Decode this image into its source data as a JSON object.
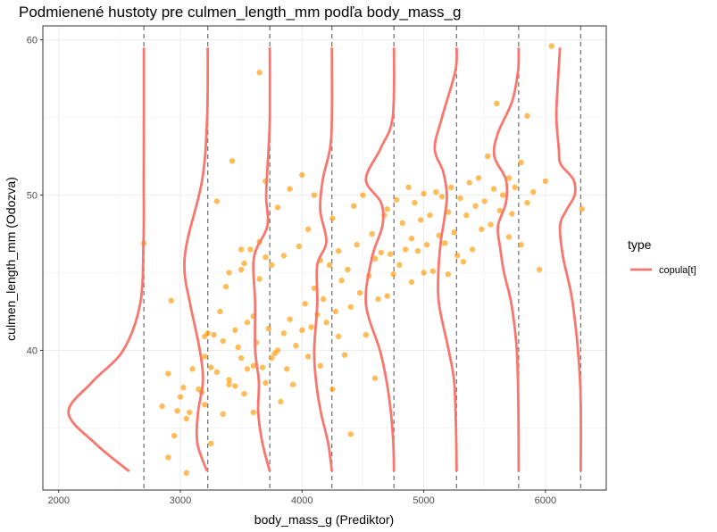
{
  "chart_data": {
    "type": "scatter",
    "title": "Podmienené hustoty pre culmen_length_mm podľa body_mass_g",
    "xlabel": "body_mass_g (Prediktor)",
    "ylabel": "culmen_length_mm (Odozva)",
    "xlim": [
      1870,
      6500
    ],
    "ylim": [
      31.0,
      60.9
    ],
    "xticks": [
      2000,
      3000,
      4000,
      5000,
      6000
    ],
    "yticks": [
      40,
      50,
      60
    ],
    "grid": true,
    "legend": {
      "title": "type",
      "position": "right",
      "entries": [
        {
          "label": "copula[t]",
          "color": "#F8766D"
        }
      ]
    },
    "point_color": "#FF9800",
    "density_color": "#F8766D",
    "slice_line_color": "#777777",
    "slice_positions": [
      2700,
      3225,
      3735,
      4245,
      4755,
      5270,
      5780,
      6290
    ],
    "density_curves": [
      {
        "x0": 2700,
        "y": [
          32.2,
          34.0,
          36.0,
          38.0,
          40.0,
          43.0,
          47.0,
          51.0,
          55.0,
          59.5
        ],
        "offset": [
          120,
          400,
          620,
          420,
          170,
          30,
          3,
          1,
          0,
          0
        ]
      },
      {
        "x0": 3225,
        "y": [
          32.2,
          34.0,
          36.0,
          38.0,
          40.0,
          43.0,
          45.0,
          47.0,
          51.0,
          55.0,
          59.5
        ],
        "offset": [
          5,
          85,
          80,
          40,
          65,
          145,
          190,
          170,
          45,
          5,
          0
        ]
      },
      {
        "x0": 3735,
        "y": [
          32.2,
          34.0,
          36.0,
          38.0,
          40.0,
          43.0,
          46.0,
          48.0,
          50.0,
          53.0,
          55.0,
          59.5
        ],
        "offset": [
          0,
          60,
          95,
          90,
          120,
          120,
          130,
          20,
          30,
          10,
          0,
          0
        ]
      },
      {
        "x0": 4245,
        "y": [
          32.2,
          34.0,
          36.0,
          38.0,
          40.0,
          43.0,
          45.5,
          47.0,
          49.0,
          51.0,
          53.0,
          55.0,
          59.5
        ],
        "offset": [
          0,
          30,
          90,
          130,
          145,
          120,
          120,
          45,
          95,
          75,
          15,
          0,
          0
        ]
      },
      {
        "x0": 4755,
        "y": [
          32.2,
          34.0,
          36.0,
          38.0,
          40.0,
          43.0,
          46.0,
          48.0,
          49.5,
          51.0,
          53.0,
          55.0,
          59.5
        ],
        "offset": [
          0,
          5,
          25,
          60,
          115,
          230,
          180,
          95,
          105,
          230,
          110,
          10,
          0
        ]
      },
      {
        "x0": 5270,
        "y": [
          32.2,
          35.0,
          38.0,
          40.0,
          43.0,
          45.0,
          47.0,
          48.5,
          50.0,
          51.5,
          53.0,
          55.0,
          58.0,
          59.5
        ],
        "offset": [
          0,
          5,
          20,
          65,
          145,
          150,
          130,
          100,
          80,
          110,
          180,
          120,
          10,
          0
        ]
      },
      {
        "x0": 5780,
        "y": [
          32.2,
          36.0,
          40.0,
          43.0,
          45.0,
          46.5,
          48.0,
          49.5,
          51.0,
          52.5,
          54.0,
          56.0,
          58.0,
          59.5
        ],
        "offset": [
          0,
          2,
          15,
          60,
          120,
          150,
          170,
          105,
          105,
          200,
          170,
          55,
          5,
          0
        ]
      },
      {
        "x0": 6290,
        "y": [
          32.2,
          38.0,
          43.0,
          46.0,
          48.0,
          49.0,
          50.0,
          51.0,
          52.0,
          53.0,
          55.0,
          57.0,
          59.5
        ],
        "offset": [
          0,
          5,
          65,
          145,
          170,
          120,
          50,
          60,
          165,
          180,
          200,
          190,
          170
        ]
      }
    ],
    "points": [
      [
        2700,
        46.9
      ],
      [
        2850,
        36.4
      ],
      [
        2900,
        33.1
      ],
      [
        2900,
        38.5
      ],
      [
        2925,
        43.2
      ],
      [
        2950,
        34.5
      ],
      [
        2975,
        36.1
      ],
      [
        3000,
        37.0
      ],
      [
        3025,
        37.6
      ],
      [
        3050,
        32.1
      ],
      [
        3050,
        35.6
      ],
      [
        3075,
        36.0
      ],
      [
        3100,
        38.8
      ],
      [
        3150,
        37.5
      ],
      [
        3175,
        37.3
      ],
      [
        3200,
        36.5
      ],
      [
        3200,
        40.9
      ],
      [
        3200,
        39.6
      ],
      [
        3225,
        41.1
      ],
      [
        3250,
        34.0
      ],
      [
        3250,
        38.9
      ],
      [
        3275,
        41.0
      ],
      [
        3300,
        38.6
      ],
      [
        3300,
        49.6
      ],
      [
        3325,
        42.5
      ],
      [
        3350,
        35.9
      ],
      [
        3350,
        40.6
      ],
      [
        3375,
        44.1
      ],
      [
        3400,
        38.1
      ],
      [
        3400,
        37.8
      ],
      [
        3400,
        45.0
      ],
      [
        3425,
        52.2
      ],
      [
        3450,
        37.7
      ],
      [
        3450,
        41.3
      ],
      [
        3475,
        40.2
      ],
      [
        3500,
        45.2
      ],
      [
        3500,
        39.5
      ],
      [
        3500,
        46.5
      ],
      [
        3525,
        37.2
      ],
      [
        3525,
        45.6
      ],
      [
        3550,
        38.8
      ],
      [
        3550,
        41.8
      ],
      [
        3575,
        46.5
      ],
      [
        3600,
        39.0
      ],
      [
        3600,
        36.0
      ],
      [
        3600,
        42.2
      ],
      [
        3625,
        40.5
      ],
      [
        3650,
        47.0
      ],
      [
        3650,
        44.6
      ],
      [
        3650,
        57.9
      ],
      [
        3675,
        38.9
      ],
      [
        3700,
        37.9
      ],
      [
        3700,
        50.9
      ],
      [
        3700,
        46.0
      ],
      [
        3725,
        41.4
      ],
      [
        3750,
        39.5
      ],
      [
        3750,
        45.5
      ],
      [
        3775,
        39.8
      ],
      [
        3800,
        40.0
      ],
      [
        3800,
        49.2
      ],
      [
        3825,
        36.7
      ],
      [
        3850,
        41.1
      ],
      [
        3850,
        46.1
      ],
      [
        3875,
        38.8
      ],
      [
        3900,
        42.0
      ],
      [
        3900,
        50.4
      ],
      [
        3925,
        37.8
      ],
      [
        3950,
        40.3
      ],
      [
        3975,
        46.7
      ],
      [
        4000,
        41.3
      ],
      [
        4000,
        51.3
      ],
      [
        4025,
        43.0
      ],
      [
        4050,
        39.6
      ],
      [
        4050,
        47.8
      ],
      [
        4075,
        41.5
      ],
      [
        4100,
        44.0
      ],
      [
        4100,
        50.0
      ],
      [
        4125,
        42.3
      ],
      [
        4150,
        39.0
      ],
      [
        4150,
        45.8
      ],
      [
        4175,
        43.3
      ],
      [
        4200,
        41.8
      ],
      [
        4225,
        45.5
      ],
      [
        4250,
        37.5
      ],
      [
        4250,
        48.5
      ],
      [
        4275,
        42.5
      ],
      [
        4300,
        40.9
      ],
      [
        4300,
        46.4
      ],
      [
        4325,
        44.5
      ],
      [
        4350,
        39.7
      ],
      [
        4375,
        45.2
      ],
      [
        4400,
        34.6
      ],
      [
        4400,
        42.8
      ],
      [
        4425,
        49.3
      ],
      [
        4450,
        46.8
      ],
      [
        4475,
        43.7
      ],
      [
        4500,
        50.0
      ],
      [
        4525,
        41.0
      ],
      [
        4550,
        44.8
      ],
      [
        4575,
        47.5
      ],
      [
        4600,
        38.2
      ],
      [
        4600,
        45.9
      ],
      [
        4625,
        43.3
      ],
      [
        4650,
        46.3
      ],
      [
        4675,
        48.7
      ],
      [
        4700,
        43.5
      ],
      [
        4700,
        49.1
      ],
      [
        4725,
        46.2
      ],
      [
        4750,
        44.9
      ],
      [
        4775,
        49.7
      ],
      [
        4800,
        45.5
      ],
      [
        4825,
        48.2
      ],
      [
        4850,
        46.5
      ],
      [
        4875,
        50.5
      ],
      [
        4900,
        44.4
      ],
      [
        4900,
        47.2
      ],
      [
        4925,
        49.5
      ],
      [
        4950,
        46.4
      ],
      [
        4975,
        48.4
      ],
      [
        5000,
        45.0
      ],
      [
        5000,
        50.1
      ],
      [
        5025,
        46.8
      ],
      [
        5050,
        48.7
      ],
      [
        5075,
        45.1
      ],
      [
        5100,
        50.2
      ],
      [
        5125,
        47.4
      ],
      [
        5150,
        49.9
      ],
      [
        5175,
        46.9
      ],
      [
        5200,
        44.9
      ],
      [
        5200,
        48.9
      ],
      [
        5225,
        50.5
      ],
      [
        5250,
        47.6
      ],
      [
        5275,
        46.1
      ],
      [
        5300,
        49.8
      ],
      [
        5325,
        45.7
      ],
      [
        5350,
        48.7
      ],
      [
        5375,
        50.8
      ],
      [
        5400,
        46.5
      ],
      [
        5425,
        49.3
      ],
      [
        5450,
        51.1
      ],
      [
        5475,
        47.8
      ],
      [
        5500,
        49.6
      ],
      [
        5525,
        52.5
      ],
      [
        5550,
        48.1
      ],
      [
        5575,
        50.4
      ],
      [
        5600,
        55.9
      ],
      [
        5625,
        49.0
      ],
      [
        5650,
        50.0
      ],
      [
        5700,
        51.1
      ],
      [
        5700,
        47.3
      ],
      [
        5725,
        48.8
      ],
      [
        5750,
        50.5
      ],
      [
        5800,
        52.1
      ],
      [
        5800,
        46.8
      ],
      [
        5850,
        55.1
      ],
      [
        5850,
        49.5
      ],
      [
        5900,
        50.2
      ],
      [
        5950,
        45.2
      ],
      [
        6000,
        50.9
      ],
      [
        6050,
        59.6
      ],
      [
        6300,
        49.1
      ]
    ]
  }
}
